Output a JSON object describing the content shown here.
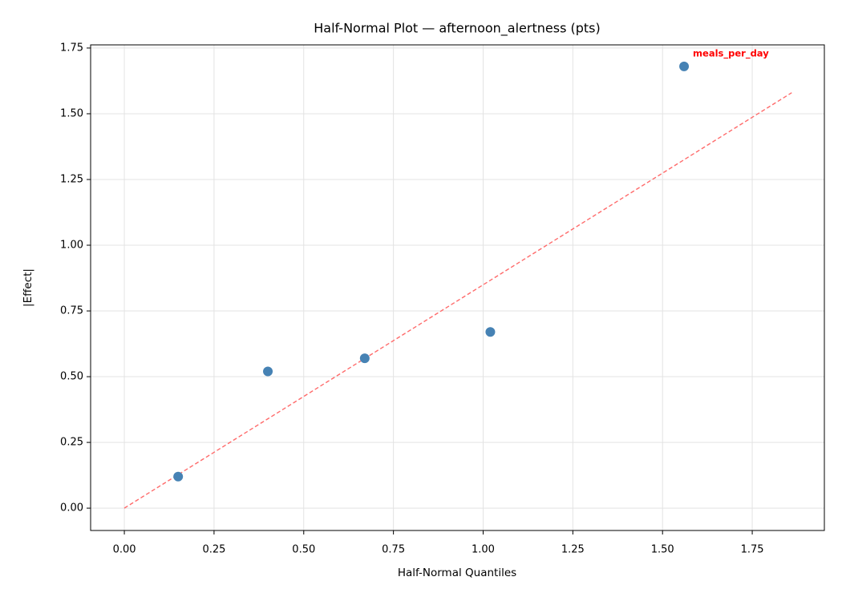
{
  "chart_data": {
    "type": "scatter",
    "title": "Half-Normal Plot — afternoon_alertness (pts)",
    "x_label": "Half-Normal Quantiles",
    "y_label": "|Effect|",
    "x": [
      0.15,
      0.4,
      0.67,
      1.02,
      1.56
    ],
    "values": [
      0.12,
      0.52,
      0.57,
      0.67,
      1.68
    ],
    "color": "#4682b4",
    "reference_line": {
      "x": [
        0,
        1.86
      ],
      "values": [
        0,
        1.58
      ],
      "color": "#ff6b6b",
      "dashed": true
    },
    "annotations": [
      {
        "text": "meals_per_day",
        "color": "#ff0000"
      }
    ],
    "xlim": [
      -0.094,
      1.951
    ],
    "ylim": [
      -0.085,
      1.762
    ],
    "xticks": [
      {
        "value": 0,
        "label": "0.00"
      },
      {
        "value": 0.25,
        "label": "0.25"
      },
      {
        "value": 0.5,
        "label": "0.50"
      },
      {
        "value": 0.75,
        "label": "0.75"
      },
      {
        "value": 1,
        "label": "1.00"
      },
      {
        "value": 1.25,
        "label": "1.25"
      },
      {
        "value": 1.5,
        "label": "1.50"
      },
      {
        "value": 1.75,
        "label": "1.75"
      }
    ],
    "yticks": [
      {
        "value": 0,
        "label": "0.00"
      },
      {
        "value": 0.25,
        "label": "0.25"
      },
      {
        "value": 0.5,
        "label": "0.50"
      },
      {
        "value": 0.75,
        "label": "0.75"
      },
      {
        "value": 1,
        "label": "1.00"
      },
      {
        "value": 1.25,
        "label": "1.25"
      },
      {
        "value": 1.5,
        "label": "1.50"
      },
      {
        "value": 1.75,
        "label": "1.75"
      }
    ],
    "grid": true
  }
}
